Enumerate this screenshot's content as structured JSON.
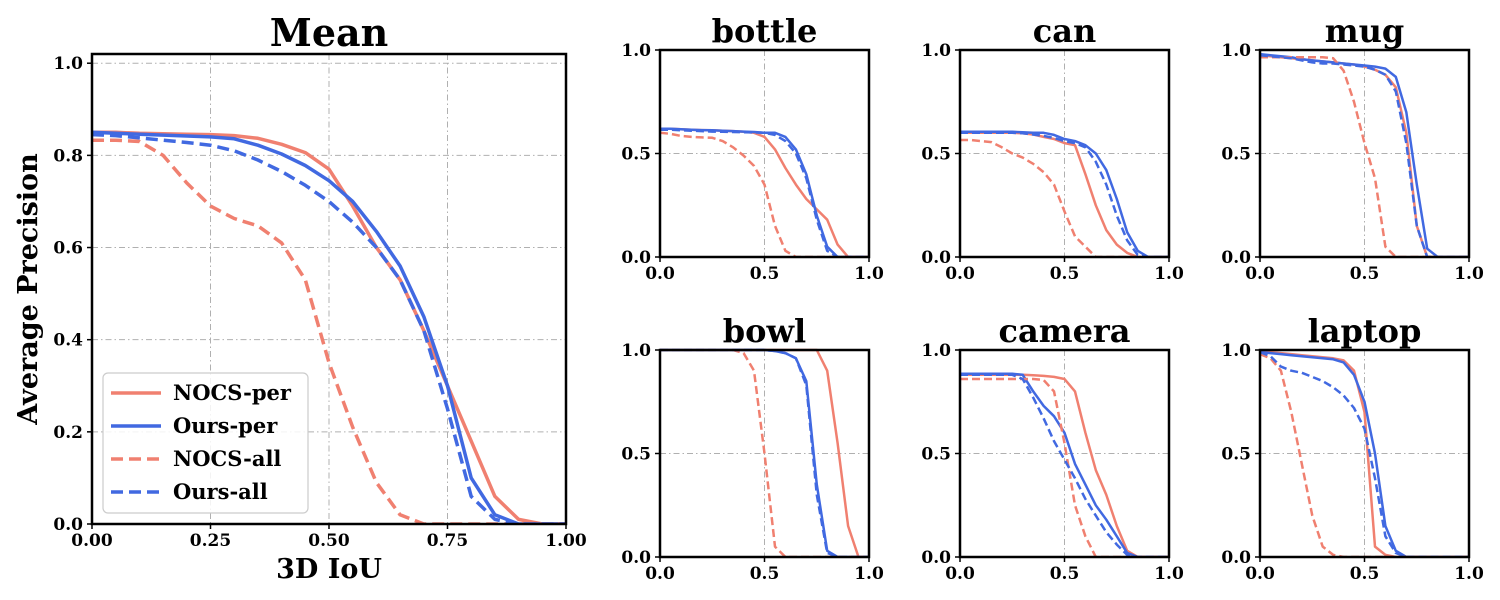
{
  "chart_data": [
    {
      "type": "line",
      "title": "Mean",
      "xlabel": "3D IoU",
      "ylabel": "Average Precision",
      "xlim": [
        0,
        1
      ],
      "ylim": [
        0,
        1.02
      ],
      "xticks": [
        "0.00",
        "0.25",
        "0.50",
        "0.75",
        "1.00"
      ],
      "yticks": [
        "0.0",
        "0.2",
        "0.4",
        "0.6",
        "0.8",
        "1.0"
      ],
      "grid": true,
      "legend": "lower-left",
      "x": [
        0,
        0.05,
        0.1,
        0.15,
        0.2,
        0.25,
        0.3,
        0.35,
        0.4,
        0.45,
        0.5,
        0.55,
        0.6,
        0.65,
        0.7,
        0.75,
        0.8,
        0.85,
        0.9,
        0.95,
        1.0
      ],
      "series": [
        {
          "name": "NOCS-per",
          "color": "#f08070",
          "dash": false,
          "values": [
            0.85,
            0.85,
            0.848,
            0.847,
            0.846,
            0.845,
            0.843,
            0.837,
            0.824,
            0.806,
            0.77,
            0.69,
            0.6,
            0.53,
            0.42,
            0.3,
            0.18,
            0.06,
            0.01,
            0.0,
            0.0
          ]
        },
        {
          "name": "Ours-per",
          "color": "#4169e1",
          "dash": false,
          "values": [
            0.85,
            0.848,
            0.846,
            0.844,
            0.842,
            0.84,
            0.836,
            0.822,
            0.803,
            0.778,
            0.745,
            0.7,
            0.635,
            0.56,
            0.45,
            0.3,
            0.1,
            0.02,
            0.0,
            0.0,
            0.0
          ]
        },
        {
          "name": "NOCS-all",
          "color": "#f08070",
          "dash": true,
          "values": [
            0.833,
            0.833,
            0.83,
            0.8,
            0.74,
            0.69,
            0.663,
            0.647,
            0.61,
            0.53,
            0.35,
            0.21,
            0.09,
            0.02,
            0.0,
            0.0,
            0.0,
            0.0,
            0.0,
            0.0,
            0.0
          ]
        },
        {
          "name": "Ours-all",
          "color": "#4169e1",
          "dash": true,
          "values": [
            0.845,
            0.843,
            0.838,
            0.833,
            0.828,
            0.822,
            0.81,
            0.79,
            0.765,
            0.735,
            0.7,
            0.655,
            0.6,
            0.53,
            0.42,
            0.25,
            0.06,
            0.01,
            0.0,
            0.0,
            0.0
          ]
        }
      ]
    },
    {
      "type": "line",
      "title": "bottle",
      "xlim": [
        0,
        1
      ],
      "ylim": [
        0,
        1
      ],
      "xticks": [
        "0.0",
        "0.5",
        "1.0"
      ],
      "yticks": [
        "0.0",
        "0.5",
        "1.0"
      ],
      "grid": true,
      "x": [
        0,
        0.05,
        0.1,
        0.15,
        0.2,
        0.25,
        0.3,
        0.35,
        0.4,
        0.45,
        0.5,
        0.55,
        0.6,
        0.65,
        0.7,
        0.75,
        0.8,
        0.85,
        0.9,
        0.95,
        1.0
      ],
      "series": [
        {
          "name": "NOCS-per",
          "color": "#f08070",
          "dash": false,
          "values": [
            0.62,
            0.62,
            0.617,
            0.615,
            0.613,
            0.612,
            0.61,
            0.608,
            0.605,
            0.6,
            0.58,
            0.52,
            0.43,
            0.35,
            0.28,
            0.23,
            0.18,
            0.06,
            0.0,
            0.0,
            0.0
          ]
        },
        {
          "name": "Ours-per",
          "color": "#4169e1",
          "dash": false,
          "values": [
            0.62,
            0.62,
            0.617,
            0.615,
            0.613,
            0.612,
            0.61,
            0.608,
            0.606,
            0.604,
            0.6,
            0.6,
            0.58,
            0.52,
            0.4,
            0.2,
            0.05,
            0.0,
            0.0,
            0.0,
            0.0
          ]
        },
        {
          "name": "NOCS-all",
          "color": "#f08070",
          "dash": true,
          "values": [
            0.6,
            0.595,
            0.585,
            0.58,
            0.578,
            0.576,
            0.56,
            0.53,
            0.49,
            0.44,
            0.35,
            0.15,
            0.03,
            0.0,
            0.0,
            0.0,
            0.0,
            0.0,
            0.0,
            0.0,
            0.0
          ]
        },
        {
          "name": "Ours-all",
          "color": "#4169e1",
          "dash": true,
          "values": [
            0.615,
            0.615,
            0.612,
            0.61,
            0.608,
            0.606,
            0.605,
            0.604,
            0.603,
            0.602,
            0.6,
            0.59,
            0.56,
            0.5,
            0.38,
            0.18,
            0.03,
            0.0,
            0.0,
            0.0,
            0.0
          ]
        }
      ]
    },
    {
      "type": "line",
      "title": "can",
      "xlim": [
        0,
        1
      ],
      "ylim": [
        0,
        1
      ],
      "xticks": [
        "0.0",
        "0.5",
        "1.0"
      ],
      "yticks": [
        "0.0",
        "0.5",
        "1.0"
      ],
      "grid": true,
      "x": [
        0,
        0.05,
        0.1,
        0.15,
        0.2,
        0.25,
        0.3,
        0.35,
        0.4,
        0.45,
        0.5,
        0.55,
        0.6,
        0.65,
        0.7,
        0.75,
        0.8,
        0.85,
        0.9,
        0.95,
        1.0
      ],
      "series": [
        {
          "name": "NOCS-per",
          "color": "#f08070",
          "dash": false,
          "values": [
            0.6,
            0.6,
            0.6,
            0.6,
            0.6,
            0.6,
            0.598,
            0.592,
            0.58,
            0.57,
            0.55,
            0.54,
            0.4,
            0.25,
            0.13,
            0.06,
            0.02,
            0.0,
            0.0,
            0.0,
            0.0
          ]
        },
        {
          "name": "Ours-per",
          "color": "#4169e1",
          "dash": false,
          "values": [
            0.605,
            0.605,
            0.605,
            0.605,
            0.605,
            0.605,
            0.603,
            0.6,
            0.6,
            0.59,
            0.57,
            0.56,
            0.54,
            0.5,
            0.42,
            0.28,
            0.12,
            0.03,
            0.0,
            0.0,
            0.0
          ]
        },
        {
          "name": "NOCS-all",
          "color": "#f08070",
          "dash": true,
          "values": [
            0.565,
            0.565,
            0.56,
            0.555,
            0.53,
            0.5,
            0.48,
            0.45,
            0.41,
            0.35,
            0.22,
            0.1,
            0.05,
            0.0,
            0.0,
            0.0,
            0.0,
            0.0,
            0.0,
            0.0,
            0.0
          ]
        },
        {
          "name": "Ours-all",
          "color": "#4169e1",
          "dash": true,
          "values": [
            0.6,
            0.6,
            0.6,
            0.6,
            0.6,
            0.6,
            0.598,
            0.592,
            0.585,
            0.575,
            0.56,
            0.55,
            0.53,
            0.46,
            0.35,
            0.2,
            0.08,
            0.01,
            0.0,
            0.0,
            0.0
          ]
        }
      ]
    },
    {
      "type": "line",
      "title": "mug",
      "xlim": [
        0,
        1
      ],
      "ylim": [
        0,
        1
      ],
      "xticks": [
        "0.0",
        "0.5",
        "1.0"
      ],
      "yticks": [
        "0.0",
        "0.5",
        "1.0"
      ],
      "grid": true,
      "x": [
        0,
        0.05,
        0.1,
        0.15,
        0.2,
        0.25,
        0.3,
        0.35,
        0.4,
        0.45,
        0.5,
        0.55,
        0.6,
        0.65,
        0.7,
        0.75,
        0.8,
        0.85,
        0.9,
        0.95,
        1.0
      ],
      "series": [
        {
          "name": "NOCS-per",
          "color": "#f08070",
          "dash": false,
          "values": [
            0.975,
            0.97,
            0.965,
            0.96,
            0.955,
            0.95,
            0.945,
            0.94,
            0.935,
            0.93,
            0.92,
            0.905,
            0.88,
            0.82,
            0.6,
            0.15,
            0.0,
            0.0,
            0.0,
            0.0,
            0.0
          ]
        },
        {
          "name": "Ours-per",
          "color": "#4169e1",
          "dash": false,
          "values": [
            0.98,
            0.975,
            0.97,
            0.965,
            0.955,
            0.95,
            0.945,
            0.94,
            0.935,
            0.93,
            0.925,
            0.92,
            0.91,
            0.87,
            0.7,
            0.35,
            0.04,
            0.0,
            0.0,
            0.0,
            0.0
          ]
        },
        {
          "name": "NOCS-all",
          "color": "#f08070",
          "dash": true,
          "values": [
            0.965,
            0.965,
            0.965,
            0.965,
            0.965,
            0.965,
            0.965,
            0.96,
            0.9,
            0.75,
            0.55,
            0.38,
            0.05,
            0.0,
            0.0,
            0.0,
            0.0,
            0.0,
            0.0,
            0.0,
            0.0
          ]
        },
        {
          "name": "Ours-all",
          "color": "#4169e1",
          "dash": true,
          "values": [
            0.975,
            0.97,
            0.965,
            0.96,
            0.95,
            0.94,
            0.935,
            0.935,
            0.93,
            0.925,
            0.92,
            0.905,
            0.88,
            0.8,
            0.55,
            0.15,
            0.0,
            0.0,
            0.0,
            0.0,
            0.0
          ]
        }
      ]
    },
    {
      "type": "line",
      "title": "bowl",
      "xlim": [
        0,
        1
      ],
      "ylim": [
        0,
        1
      ],
      "xticks": [
        "0.0",
        "0.5",
        "1.0"
      ],
      "yticks": [
        "0.0",
        "0.5",
        "1.0"
      ],
      "grid": true,
      "x": [
        0,
        0.05,
        0.1,
        0.15,
        0.2,
        0.25,
        0.3,
        0.35,
        0.4,
        0.45,
        0.5,
        0.55,
        0.6,
        0.65,
        0.7,
        0.75,
        0.8,
        0.85,
        0.9,
        0.95,
        1.0
      ],
      "series": [
        {
          "name": "NOCS-per",
          "color": "#f08070",
          "dash": false,
          "values": [
            1.0,
            1.0,
            1.0,
            1.0,
            1.0,
            1.0,
            1.0,
            1.0,
            1.0,
            1.0,
            1.0,
            1.0,
            1.0,
            1.0,
            1.0,
            1.0,
            0.9,
            0.55,
            0.15,
            0.0,
            0.0
          ]
        },
        {
          "name": "Ours-per",
          "color": "#4169e1",
          "dash": false,
          "values": [
            1.0,
            1.0,
            1.0,
            1.0,
            1.0,
            1.0,
            1.0,
            1.0,
            1.0,
            1.0,
            1.0,
            0.995,
            0.985,
            0.96,
            0.85,
            0.35,
            0.03,
            0.0,
            0.0,
            0.0,
            0.0
          ]
        },
        {
          "name": "NOCS-all",
          "color": "#f08070",
          "dash": true,
          "values": [
            1.0,
            1.0,
            1.0,
            1.0,
            1.0,
            1.0,
            1.0,
            1.0,
            0.985,
            0.9,
            0.5,
            0.05,
            0.0,
            0.0,
            0.0,
            0.0,
            0.0,
            0.0,
            0.0,
            0.0,
            0.0
          ]
        },
        {
          "name": "Ours-all",
          "color": "#4169e1",
          "dash": true,
          "values": [
            1.0,
            1.0,
            1.0,
            1.0,
            1.0,
            1.0,
            1.0,
            1.0,
            1.0,
            1.0,
            1.0,
            0.995,
            0.985,
            0.96,
            0.83,
            0.3,
            0.02,
            0.0,
            0.0,
            0.0,
            0.0
          ]
        }
      ]
    },
    {
      "type": "line",
      "title": "camera",
      "xlim": [
        0,
        1
      ],
      "ylim": [
        0,
        1
      ],
      "xticks": [
        "0.0",
        "0.5",
        "1.0"
      ],
      "yticks": [
        "0.0",
        "0.5",
        "1.0"
      ],
      "grid": true,
      "x": [
        0,
        0.05,
        0.1,
        0.15,
        0.2,
        0.25,
        0.3,
        0.35,
        0.4,
        0.45,
        0.5,
        0.55,
        0.6,
        0.65,
        0.7,
        0.75,
        0.8,
        0.85,
        0.9,
        0.95,
        1.0
      ],
      "series": [
        {
          "name": "NOCS-per",
          "color": "#f08070",
          "dash": false,
          "values": [
            0.88,
            0.88,
            0.88,
            0.88,
            0.88,
            0.88,
            0.88,
            0.878,
            0.875,
            0.87,
            0.86,
            0.8,
            0.6,
            0.42,
            0.3,
            0.15,
            0.03,
            0.0,
            0.0,
            0.0,
            0.0
          ]
        },
        {
          "name": "Ours-per",
          "color": "#4169e1",
          "dash": false,
          "values": [
            0.885,
            0.885,
            0.885,
            0.885,
            0.885,
            0.885,
            0.88,
            0.8,
            0.73,
            0.68,
            0.6,
            0.45,
            0.35,
            0.25,
            0.18,
            0.1,
            0.02,
            0.0,
            0.0,
            0.0,
            0.0
          ]
        },
        {
          "name": "NOCS-all",
          "color": "#f08070",
          "dash": true,
          "values": [
            0.86,
            0.86,
            0.86,
            0.86,
            0.86,
            0.86,
            0.86,
            0.86,
            0.855,
            0.8,
            0.55,
            0.25,
            0.1,
            0.0,
            0.0,
            0.0,
            0.0,
            0.0,
            0.0,
            0.0,
            0.0
          ]
        },
        {
          "name": "Ours-all",
          "color": "#4169e1",
          "dash": true,
          "values": [
            0.88,
            0.88,
            0.88,
            0.88,
            0.88,
            0.88,
            0.86,
            0.77,
            0.67,
            0.56,
            0.47,
            0.38,
            0.28,
            0.2,
            0.12,
            0.06,
            0.01,
            0.0,
            0.0,
            0.0,
            0.0
          ]
        }
      ]
    },
    {
      "type": "line",
      "title": "laptop",
      "xlim": [
        0,
        1
      ],
      "ylim": [
        0,
        1
      ],
      "xticks": [
        "0.0",
        "0.5",
        "1.0"
      ],
      "yticks": [
        "0.0",
        "0.5",
        "1.0"
      ],
      "grid": true,
      "x": [
        0,
        0.05,
        0.1,
        0.15,
        0.2,
        0.25,
        0.3,
        0.35,
        0.4,
        0.45,
        0.5,
        0.55,
        0.6,
        0.65,
        0.7,
        0.75,
        0.8,
        0.85,
        0.9,
        0.95,
        1.0
      ],
      "series": [
        {
          "name": "NOCS-per",
          "color": "#f08070",
          "dash": false,
          "values": [
            0.99,
            0.99,
            0.985,
            0.98,
            0.975,
            0.97,
            0.965,
            0.96,
            0.95,
            0.9,
            0.7,
            0.05,
            0.01,
            0.0,
            0.0,
            0.0,
            0.0,
            0.0,
            0.0,
            0.0,
            0.0
          ]
        },
        {
          "name": "Ours-per",
          "color": "#4169e1",
          "dash": false,
          "values": [
            0.99,
            0.985,
            0.98,
            0.975,
            0.97,
            0.965,
            0.96,
            0.955,
            0.94,
            0.88,
            0.75,
            0.5,
            0.15,
            0.03,
            0.0,
            0.0,
            0.0,
            0.0,
            0.0,
            0.0,
            0.0
          ]
        },
        {
          "name": "NOCS-all",
          "color": "#f08070",
          "dash": true,
          "values": [
            0.98,
            0.96,
            0.9,
            0.7,
            0.45,
            0.2,
            0.05,
            0.01,
            0.0,
            0.0,
            0.0,
            0.0,
            0.0,
            0.0,
            0.0,
            0.0,
            0.0,
            0.0,
            0.0,
            0.0,
            0.0
          ]
        },
        {
          "name": "Ours-all",
          "color": "#4169e1",
          "dash": true,
          "values": [
            0.99,
            0.97,
            0.92,
            0.9,
            0.89,
            0.87,
            0.85,
            0.82,
            0.78,
            0.72,
            0.62,
            0.38,
            0.1,
            0.02,
            0.0,
            0.0,
            0.0,
            0.0,
            0.0,
            0.0,
            0.0
          ]
        }
      ]
    }
  ]
}
